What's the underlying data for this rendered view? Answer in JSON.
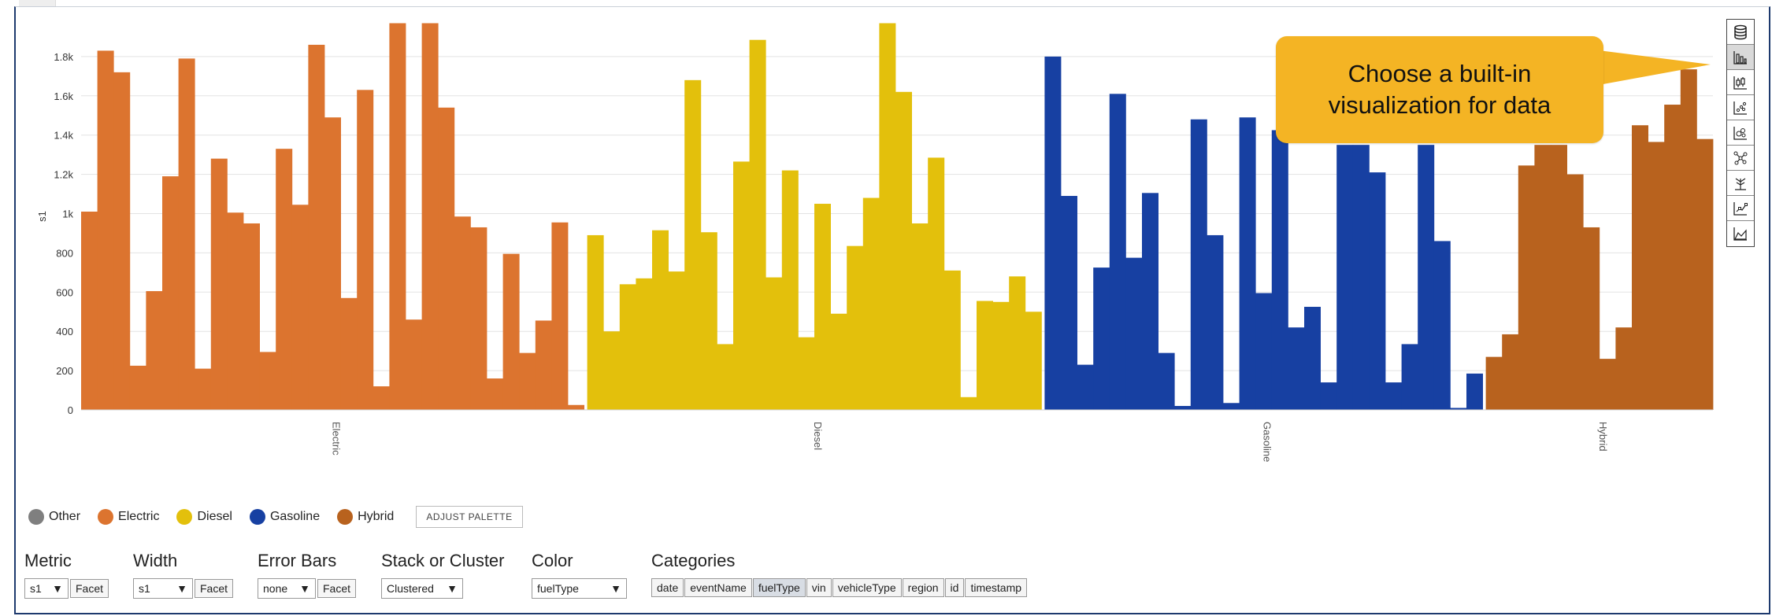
{
  "callout": {
    "text": "Choose a built-in visualization for data"
  },
  "toolbar": {
    "buttons": [
      {
        "icon": "database-icon"
      },
      {
        "icon": "bar-chart-icon",
        "active": true
      },
      {
        "icon": "candlestick-icon"
      },
      {
        "icon": "scatter-icon"
      },
      {
        "icon": "bubble-icon"
      },
      {
        "icon": "network-icon"
      },
      {
        "icon": "tree-icon"
      },
      {
        "icon": "line-point-icon"
      },
      {
        "icon": "area-chart-icon"
      }
    ]
  },
  "legend": {
    "items": [
      {
        "label": "Other",
        "color": "#7f7f7f"
      },
      {
        "label": "Electric",
        "color": "#dc742f"
      },
      {
        "label": "Diesel",
        "color": "#e3c00c"
      },
      {
        "label": "Gasoline",
        "color": "#1740a2"
      },
      {
        "label": "Hybrid",
        "color": "#b8621e"
      }
    ],
    "adjust_palette": "ADJUST PALETTE"
  },
  "controls": {
    "metric": {
      "title": "Metric",
      "value": "s1",
      "facet": "Facet"
    },
    "width": {
      "title": "Width",
      "value": "s1",
      "facet": "Facet"
    },
    "error_bars": {
      "title": "Error Bars",
      "value": "none",
      "facet": "Facet"
    },
    "stack": {
      "title": "Stack or Cluster",
      "value": "Clustered"
    },
    "color": {
      "title": "Color",
      "value": "fuelType"
    },
    "categories": {
      "title": "Categories",
      "items": [
        "date",
        "eventName",
        "fuelType",
        "vin",
        "vehicleType",
        "region",
        "id",
        "timestamp"
      ],
      "selected": "fuelType"
    }
  },
  "chart_data": {
    "type": "bar",
    "ylabel": "s1",
    "ylim": [
      0,
      2000
    ],
    "yticks": [
      "0",
      "200",
      "400",
      "600",
      "800",
      "1k",
      "1.2k",
      "1.4k",
      "1.6k",
      "1.8k"
    ],
    "grid": true,
    "groups": [
      {
        "name": "Electric",
        "color": "#dc742f",
        "values": [
          1010,
          1830,
          1720,
          225,
          605,
          1190,
          1790,
          210,
          1280,
          1005,
          950,
          295,
          1330,
          1045,
          1860,
          1490,
          570,
          1630,
          120,
          1970,
          460,
          1970,
          1540,
          985,
          930,
          160,
          795,
          290,
          455,
          955,
          25
        ]
      },
      {
        "name": "Diesel",
        "color": "#e3c00c",
        "values": [
          890,
          400,
          640,
          670,
          915,
          705,
          1680,
          905,
          335,
          1265,
          1885,
          675,
          1220,
          370,
          1050,
          490,
          835,
          1080,
          1970,
          1620,
          950,
          1285,
          710,
          65,
          555,
          550,
          680,
          500
        ]
      },
      {
        "name": "Gasoline",
        "color": "#1740a2",
        "values": [
          1800,
          1090,
          230,
          725,
          1610,
          775,
          1105,
          290,
          20,
          1480,
          890,
          35,
          1490,
          595,
          1425,
          420,
          525,
          140,
          1350,
          1350,
          1210,
          140,
          335,
          1350,
          860,
          10,
          185
        ]
      },
      {
        "name": "Hybrid",
        "color": "#b8621e",
        "values": [
          270,
          385,
          1245,
          1350,
          1350,
          1200,
          930,
          260,
          420,
          1450,
          1365,
          1555,
          1735,
          1380
        ]
      }
    ]
  }
}
